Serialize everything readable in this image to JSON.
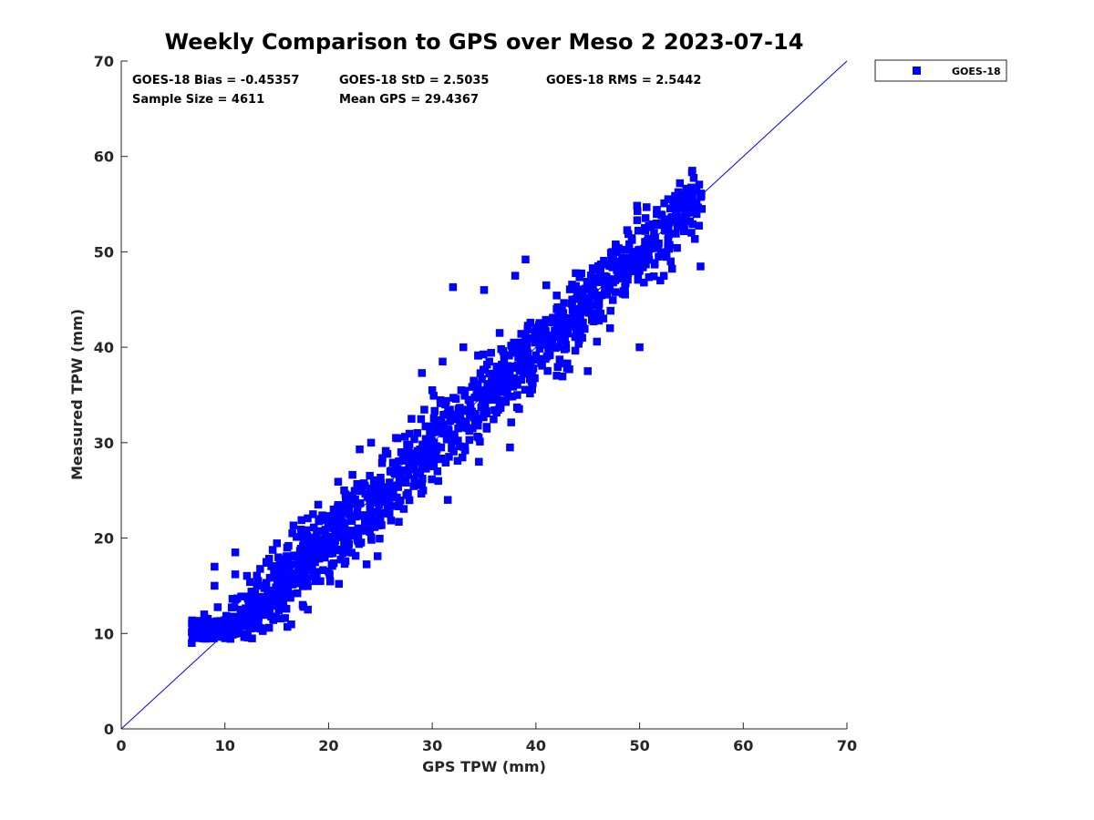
{
  "chart_data": {
    "type": "scatter",
    "title": "Weekly Comparison to GPS over Meso 2 2023-07-14",
    "xlabel": "GPS TPW (mm)",
    "ylabel": "Measured TPW (mm)",
    "xlim": [
      0,
      70
    ],
    "ylim": [
      0,
      70
    ],
    "xticks": [
      "0",
      "10",
      "20",
      "30",
      "40",
      "50",
      "60",
      "70"
    ],
    "yticks": [
      "0",
      "10",
      "20",
      "30",
      "40",
      "50",
      "60",
      "70"
    ],
    "grid": false,
    "legend_position": "outside top-right",
    "reference_line": {
      "from": [
        0,
        0
      ],
      "to": [
        70,
        70
      ],
      "color": "#0000ff"
    },
    "stats": [
      {
        "label": "GOES-18 Bias = -0.45357"
      },
      {
        "label": "GOES-18 StD = 2.5035"
      },
      {
        "label": "GOES-18 RMS = 2.5442"
      },
      {
        "label": "Sample Size = 4611"
      },
      {
        "label": "Mean GPS = 29.4367"
      }
    ],
    "series": [
      {
        "name": "GOES-18",
        "color": "#0000ff",
        "marker": "square",
        "cluster_x_range": [
          6.8,
          56
        ],
        "points": [
          [
            6.8,
            9.0
          ],
          [
            8.0,
            12.0
          ],
          [
            8.5,
            11.0
          ],
          [
            9.0,
            10.5
          ],
          [
            9.0,
            17.0
          ],
          [
            9.0,
            15.0
          ],
          [
            10.0,
            9.5
          ],
          [
            10.5,
            11.5
          ],
          [
            11.0,
            10.0
          ],
          [
            11.0,
            18.5
          ],
          [
            11.0,
            16.2
          ],
          [
            11.5,
            12.5
          ],
          [
            12.5,
            11.0
          ],
          [
            13.0,
            12.0
          ],
          [
            13.5,
            15.0
          ],
          [
            14.0,
            17.5
          ],
          [
            15.0,
            13.5
          ],
          [
            15.5,
            17.8
          ],
          [
            16.0,
            19.0
          ],
          [
            16.5,
            20.5
          ],
          [
            17.0,
            15.5
          ],
          [
            17.5,
            13.0
          ],
          [
            18.0,
            17.5
          ],
          [
            18.0,
            12.5
          ],
          [
            18.5,
            22.5
          ],
          [
            19.0,
            23.5
          ],
          [
            19.5,
            18.0
          ],
          [
            20.0,
            16.5
          ],
          [
            20.5,
            21.0
          ],
          [
            21.0,
            15.2
          ],
          [
            21.5,
            25.0
          ],
          [
            22.0,
            22.5
          ],
          [
            23.0,
            29.3
          ],
          [
            23.5,
            25.5
          ],
          [
            24.0,
            23.5
          ],
          [
            25.0,
            25.0
          ],
          [
            26.0,
            27.0
          ],
          [
            26.5,
            30.5
          ],
          [
            27.0,
            29.0
          ],
          [
            27.5,
            24.5
          ],
          [
            28.0,
            32.5
          ],
          [
            28.5,
            28.0
          ],
          [
            29.0,
            37.3
          ],
          [
            29.5,
            30.0
          ],
          [
            30.0,
            35.5
          ],
          [
            30.5,
            27.0
          ],
          [
            31.0,
            38.5
          ],
          [
            31.5,
            33.0
          ],
          [
            31.5,
            24.0
          ],
          [
            32.0,
            46.3
          ],
          [
            32.5,
            31.5
          ],
          [
            33.0,
            40.0
          ],
          [
            33.5,
            34.5
          ],
          [
            34.0,
            36.5
          ],
          [
            34.5,
            28.0
          ],
          [
            35.0,
            46.0
          ],
          [
            35.5,
            38.5
          ],
          [
            36.0,
            35.0
          ],
          [
            36.5,
            41.5
          ],
          [
            37.0,
            36.0
          ],
          [
            37.5,
            29.5
          ],
          [
            38.0,
            47.5
          ],
          [
            38.5,
            40.5
          ],
          [
            39.0,
            49.2
          ],
          [
            39.5,
            38.0
          ],
          [
            40.0,
            42.0
          ],
          [
            41.0,
            46.5
          ],
          [
            41.5,
            40.0
          ],
          [
            42.0,
            44.0
          ],
          [
            43.0,
            37.8
          ],
          [
            43.5,
            45.0
          ],
          [
            44.0,
            43.5
          ],
          [
            45.0,
            37.5
          ],
          [
            45.5,
            46.0
          ],
          [
            46.0,
            48.5
          ],
          [
            47.0,
            47.0
          ],
          [
            48.0,
            49.0
          ],
          [
            49.0,
            50.8
          ],
          [
            50.0,
            48.0
          ],
          [
            50.0,
            40.0
          ],
          [
            50.5,
            52.5
          ],
          [
            51.5,
            51.5
          ],
          [
            52.0,
            47.0
          ],
          [
            53.0,
            49.0
          ],
          [
            54.0,
            56.0
          ],
          [
            54.5,
            54.0
          ],
          [
            55.0,
            52.0
          ],
          [
            55.5,
            55.0
          ],
          [
            56.0,
            54.5
          ]
        ]
      }
    ]
  }
}
